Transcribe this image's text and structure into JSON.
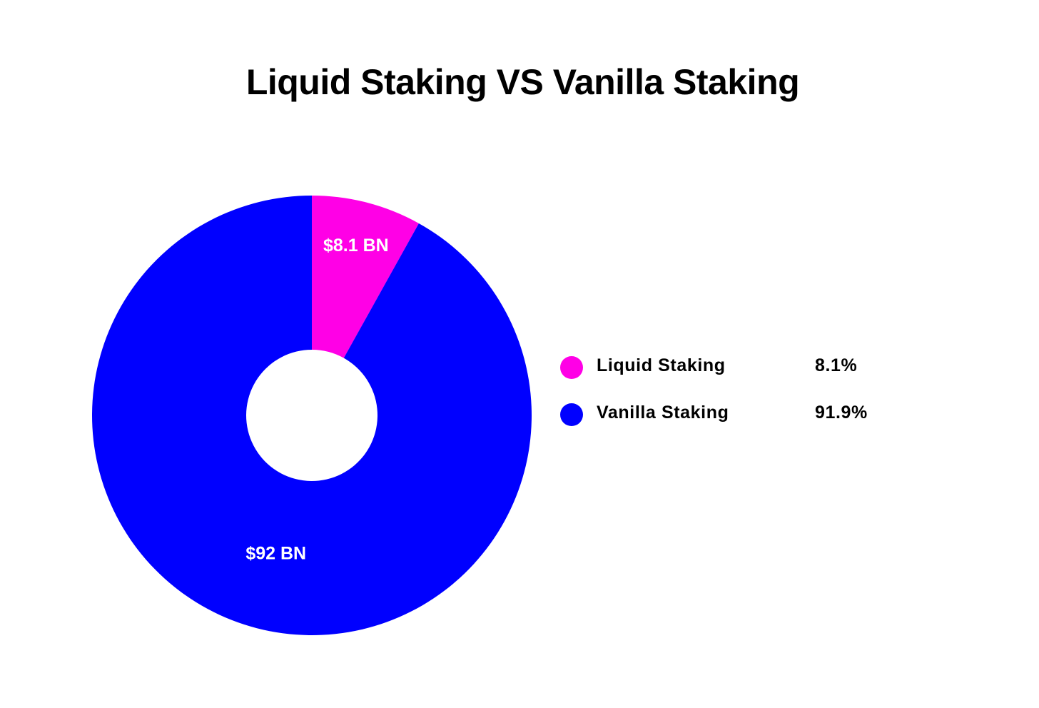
{
  "chart_data": {
    "type": "pie",
    "title": "Liquid Staking VS Vanilla Staking",
    "slices": [
      {
        "name": "Liquid Staking",
        "value": 8.1,
        "data_label": "$8.1 BN",
        "percent_label": "8.1%",
        "color": "#FF00E6"
      },
      {
        "name": "Vanilla Staking",
        "value": 92,
        "data_label": "$92 BN",
        "percent_label": "91.9%",
        "color": "#0000FF"
      }
    ],
    "donut": true,
    "legend_position": "right"
  }
}
